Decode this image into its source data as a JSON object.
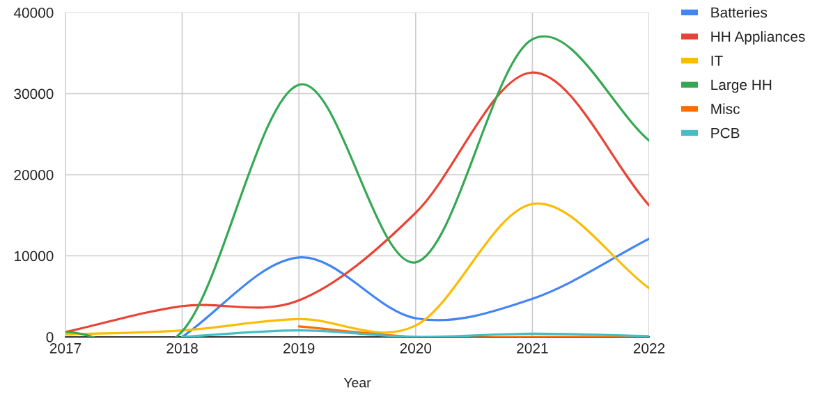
{
  "chart_data": {
    "type": "line",
    "xlabel": "Year",
    "x": [
      2017,
      2018,
      2019,
      2020,
      2021,
      2022
    ],
    "xlim": [
      2017,
      2022
    ],
    "xticks": [
      2017,
      2018,
      2019,
      2020,
      2021,
      2022
    ],
    "ylim": [
      0,
      40000
    ],
    "yticks": [
      0,
      10000,
      20000,
      30000,
      40000
    ],
    "grid": true,
    "legend": "top right",
    "series": [
      {
        "name": "Batteries",
        "color": "#4285f4",
        "values": [
          null,
          0,
          9800,
          2300,
          4700,
          12100
        ]
      },
      {
        "name": "HH Appliances",
        "color": "#ea4335",
        "values": [
          600,
          3800,
          4500,
          15300,
          32600,
          16200
        ]
      },
      {
        "name": "IT",
        "color": "#fbbc04",
        "values": [
          300,
          800,
          2200,
          1400,
          16400,
          6000
        ]
      },
      {
        "name": "Large HH",
        "color": "#34a853",
        "values": [
          600,
          700,
          31100,
          9200,
          36700,
          24200
        ]
      },
      {
        "name": "Misc",
        "color": "#ff6d01",
        "values": [
          null,
          null,
          1300,
          0,
          0,
          0
        ]
      },
      {
        "name": "PCB",
        "color": "#46bdc6",
        "values": [
          null,
          0,
          800,
          0,
          400,
          100
        ]
      }
    ]
  }
}
